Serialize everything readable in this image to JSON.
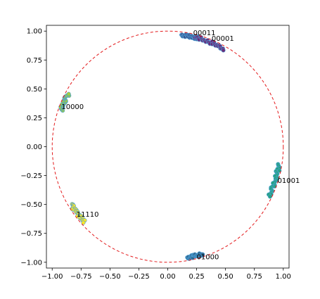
{
  "chart_data": {
    "type": "scatter",
    "title": "",
    "xlabel": "",
    "ylabel": "",
    "xlim": [
      -1.05,
      1.05
    ],
    "ylim": [
      -1.05,
      1.05
    ],
    "xticks": [
      -1.0,
      -0.75,
      -0.5,
      -0.25,
      0.0,
      0.25,
      0.5,
      0.75,
      1.0
    ],
    "yticks": [
      -1.0,
      -0.75,
      -0.5,
      -0.25,
      0.0,
      0.25,
      0.5,
      0.75,
      1.0
    ],
    "xtick_labels": [
      "−1.00",
      "−0.75",
      "−0.50",
      "−0.25",
      "0.00",
      "0.25",
      "0.50",
      "0.75",
      "1.00"
    ],
    "ytick_labels": [
      "−1.00",
      "−0.75",
      "−0.50",
      "−0.25",
      "0.00",
      "0.25",
      "0.50",
      "0.75",
      "1.00"
    ],
    "grid": false,
    "reference_circle": {
      "center": [
        0,
        0
      ],
      "radius": 1.0,
      "color": "#e31a1c",
      "style": "dashed"
    },
    "clusters": [
      {
        "label": "00011",
        "color": "#3b528b",
        "angle_start_deg": 83,
        "angle_end_deg": 74,
        "label_pos": [
          0.22,
          0.99
        ]
      },
      {
        "label": "00001",
        "color": "#6a2c7a",
        "angle_start_deg": 76,
        "angle_end_deg": 60,
        "label_pos": [
          0.38,
          0.94
        ]
      },
      {
        "label": "10000",
        "color": "#a4d13a",
        "angle_start_deg": 161,
        "angle_end_deg": 152,
        "label_pos": [
          -0.92,
          0.35
        ]
      },
      {
        "label": "01001",
        "color": "#26a283",
        "angle_start_deg": -9,
        "angle_end_deg": -26,
        "label_pos": [
          0.95,
          -0.29
        ]
      },
      {
        "label": "11110",
        "color": "#fde725",
        "angle_start_deg": 211,
        "angle_end_deg": 222,
        "label_pos": [
          -0.79,
          -0.58
        ]
      },
      {
        "label": "01000",
        "color": "#31688e",
        "angle_start_deg": -80,
        "angle_end_deg": -72,
        "label_pos": [
          0.25,
          -0.95
        ]
      }
    ],
    "points_per_cluster": 28,
    "marker_edge_color": "#4a9fd8"
  }
}
